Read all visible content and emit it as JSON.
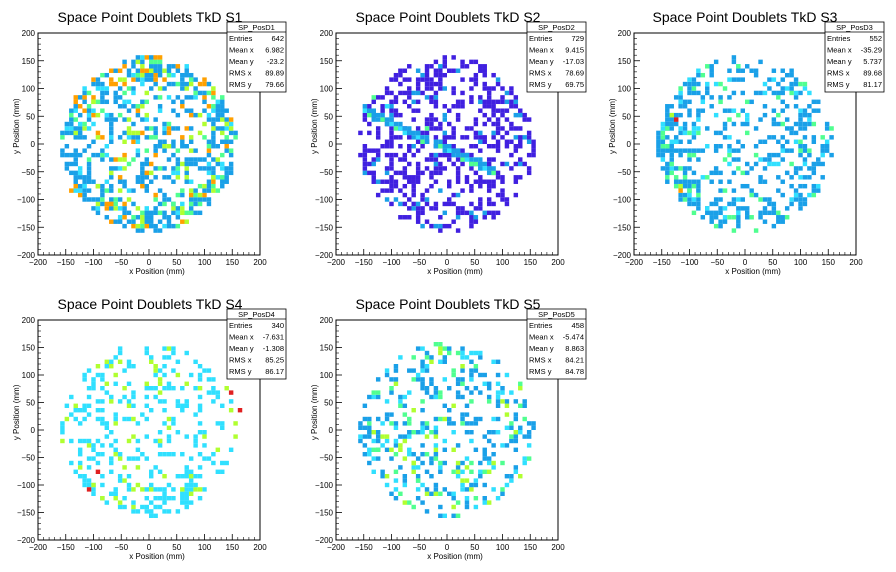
{
  "chart_data": [
    {
      "type": "heatmap",
      "title": "Space Point Doublets TkD S1",
      "xlabel": "x Position (mm)",
      "ylabel": "y Position (mm)",
      "xlim": [
        -200,
        200
      ],
      "ylim": [
        -200,
        200
      ],
      "xticks": [
        "−200",
        "−150",
        "−100",
        "−50",
        "0",
        "50",
        "100",
        "150",
        "200"
      ],
      "yticks": [
        "−200",
        "−150",
        "−100",
        "−50",
        "0",
        "50",
        "100",
        "150",
        "200"
      ],
      "stats": {
        "name": "SP_PosD1",
        "rows": [
          [
            "Entries",
            "642"
          ],
          [
            "Mean x",
            "6.982"
          ],
          [
            "Mean y",
            "-23.2"
          ],
          [
            "RMS x",
            "89.89"
          ],
          [
            "RMS y",
            "79.66"
          ]
        ]
      },
      "palette": [
        "#1aa0e8",
        "#1aa0e8",
        "#1aa0e8",
        "#1aa0e8",
        "#1aa0e8",
        "#30e0ff",
        "#50ff90",
        "#b0ff30",
        "#ffa000"
      ],
      "pattern": "ring",
      "seed": 11,
      "points": [
        [
          -100,
          75,
          "#b0ff30"
        ],
        [
          -140,
          -85,
          "#ffa000"
        ],
        [
          -90,
          -75,
          "#b0ff30"
        ],
        [
          -70,
          -105,
          "#ffa000"
        ],
        [
          100,
          115,
          "#ffa000"
        ],
        [
          115,
          -60,
          "#b0ff30"
        ],
        [
          40,
          -105,
          "#50ff90"
        ],
        [
          -30,
          -130,
          "#50ff90"
        ],
        [
          140,
          35,
          "#b0ff30"
        ]
      ]
    },
    {
      "type": "heatmap",
      "title": "Space Point Doublets TkD S2",
      "xlabel": "x Position (mm)",
      "ylabel": "y Position (mm)",
      "xlim": [
        -200,
        200
      ],
      "ylim": [
        -200,
        200
      ],
      "xticks": [
        "−200",
        "−150",
        "−100",
        "−50",
        "0",
        "50",
        "100",
        "150",
        "200"
      ],
      "yticks": [
        "−200",
        "−150",
        "−100",
        "−50",
        "0",
        "50",
        "100",
        "150",
        "200"
      ],
      "stats": {
        "name": "SP_PosD2",
        "rows": [
          [
            "Entries",
            "729"
          ],
          [
            "Mean x",
            "9.415"
          ],
          [
            "Mean y",
            "-17.03"
          ],
          [
            "RMS x",
            "78.69"
          ],
          [
            "RMS y",
            "69.75"
          ]
        ]
      },
      "palette": [
        "#4020e0",
        "#4020e0",
        "#4020e0",
        "#4020e0",
        "#4020e0",
        "#4020e0",
        "#4020e0",
        "#1aa0e8"
      ],
      "pattern": "uniform",
      "seed": 23,
      "band": {
        "from": [
          -150,
          60
        ],
        "to": [
          90,
          -55
        ],
        "colors": [
          "#1aa0e8",
          "#30e0ff",
          "#50ff90"
        ]
      },
      "points": [
        [
          -135,
          80,
          "#50ff90"
        ],
        [
          -110,
          65,
          "#30e0ff"
        ],
        [
          -40,
          25,
          "#50ff90"
        ],
        [
          0,
          -15,
          "#30e0ff"
        ],
        [
          40,
          -40,
          "#50ff90"
        ],
        [
          60,
          -45,
          "#1aa0e8"
        ]
      ]
    },
    {
      "type": "heatmap",
      "title": "Space Point Doublets TkD S3",
      "xlabel": "x Position (mm)",
      "ylabel": "y Position (mm)",
      "xlim": [
        -200,
        200
      ],
      "ylim": [
        -200,
        200
      ],
      "xticks": [
        "−200",
        "−150",
        "−100",
        "−50",
        "0",
        "50",
        "100",
        "150",
        "200"
      ],
      "yticks": [
        "−200",
        "−150",
        "−100",
        "−50",
        "0",
        "50",
        "100",
        "150",
        "200"
      ],
      "stats": {
        "name": "SP_PosD3",
        "rows": [
          [
            "Entries",
            "552"
          ],
          [
            "Mean x",
            "-35.29"
          ],
          [
            "Mean y",
            "5.737"
          ],
          [
            "RMS x",
            "89.68"
          ],
          [
            "RMS y",
            "81.17"
          ]
        ]
      },
      "palette": [
        "#1aa0e8",
        "#1aa0e8",
        "#1aa0e8",
        "#1aa0e8",
        "#1aa0e8",
        "#1aa0e8",
        "#30e0ff",
        "#50ff90"
      ],
      "pattern": "leftring",
      "seed": 37,
      "points": [
        [
          -125,
          45,
          "#e02020"
        ],
        [
          -135,
          55,
          "#b0ff30"
        ],
        [
          -140,
          30,
          "#50ff90"
        ],
        [
          -120,
          -75,
          "#b0ff30"
        ],
        [
          -115,
          -85,
          "#ffa000"
        ],
        [
          -100,
          -85,
          "#50ff90"
        ],
        [
          -70,
          -120,
          "#30e0ff"
        ],
        [
          -125,
          0,
          "#30e0ff"
        ],
        [
          100,
          -15,
          "#50ff90"
        ],
        [
          80,
          -40,
          "#50ff90"
        ],
        [
          -40,
          -25,
          "#50ff90"
        ],
        [
          155,
          25,
          "#50ff90"
        ],
        [
          -10,
          140,
          "#50ff90"
        ]
      ]
    },
    {
      "type": "heatmap",
      "title": "Space Point Doublets TkD S4",
      "xlabel": "x Position (mm)",
      "ylabel": "y Position (mm)",
      "xlim": [
        -200,
        200
      ],
      "ylim": [
        -200,
        200
      ],
      "xticks": [
        "−200",
        "−150",
        "−100",
        "−50",
        "0",
        "50",
        "100",
        "150",
        "200"
      ],
      "yticks": [
        "−200",
        "−150",
        "−100",
        "−50",
        "0",
        "50",
        "100",
        "150",
        "200"
      ],
      "stats": {
        "name": "SP_PosD4",
        "rows": [
          [
            "Entries",
            "340"
          ],
          [
            "Mean x",
            "-7.631"
          ],
          [
            "Mean y",
            "-1.308"
          ],
          [
            "RMS x",
            "85.25"
          ],
          [
            "RMS y",
            "86.17"
          ]
        ]
      },
      "palette": [
        "#30e0ff",
        "#30e0ff",
        "#30e0ff",
        "#30e0ff",
        "#30e0ff",
        "#30e0ff",
        "#b0ff30"
      ],
      "pattern": "sparse",
      "seed": 41,
      "points": [
        [
          -95,
          -80,
          "#e02020"
        ],
        [
          -105,
          -110,
          "#e02020"
        ],
        [
          145,
          70,
          "#e02020"
        ],
        [
          160,
          35,
          "#e02020"
        ],
        [
          -100,
          -100,
          "#b0ff30"
        ],
        [
          -85,
          -125,
          "#b0ff30"
        ],
        [
          95,
          -105,
          "#b0ff30"
        ],
        [
          60,
          -110,
          "#b0ff30"
        ],
        [
          -75,
          80,
          "#b0ff30"
        ],
        [
          140,
          75,
          "#b0ff30"
        ],
        [
          20,
          -20,
          "#b0ff30"
        ],
        [
          100,
          -15,
          "#b0ff30"
        ]
      ]
    },
    {
      "type": "heatmap",
      "title": "Space Point Doublets TkD S5",
      "xlabel": "x Position (mm)",
      "ylabel": "y Position (mm)",
      "xlim": [
        -200,
        200
      ],
      "ylim": [
        -200,
        200
      ],
      "xticks": [
        "−200",
        "−150",
        "−100",
        "−50",
        "0",
        "50",
        "100",
        "150",
        "200"
      ],
      "yticks": [
        "−200",
        "−150",
        "−100",
        "−50",
        "0",
        "50",
        "100",
        "150",
        "200"
      ],
      "stats": {
        "name": "SP_PosD5",
        "rows": [
          [
            "Entries",
            "458"
          ],
          [
            "Mean x",
            "-5.474"
          ],
          [
            "Mean y",
            "8.863"
          ],
          [
            "RMS x",
            "84.21"
          ],
          [
            "RMS y",
            "84.78"
          ]
        ]
      },
      "palette": [
        "#1aa0e8",
        "#1aa0e8",
        "#1aa0e8",
        "#1aa0e8",
        "#30e0ff",
        "#30e0ff",
        "#50ff90",
        "#b0ff30"
      ],
      "pattern": "sparse2",
      "seed": 53,
      "points": [
        [
          -120,
          -10,
          "#b0ff30"
        ],
        [
          -100,
          15,
          "#50ff90"
        ],
        [
          -40,
          -15,
          "#b0ff30"
        ],
        [
          -40,
          -45,
          "#50ff90"
        ],
        [
          -60,
          -60,
          "#b0ff30"
        ],
        [
          -50,
          -95,
          "#50ff90"
        ],
        [
          115,
          15,
          "#50ff90"
        ],
        [
          130,
          40,
          "#50ff90"
        ],
        [
          100,
          55,
          "#b0ff30"
        ],
        [
          25,
          10,
          "#50ff90"
        ],
        [
          120,
          -5,
          "#b0ff30"
        ],
        [
          -125,
          -35,
          "#50ff90"
        ]
      ]
    }
  ]
}
